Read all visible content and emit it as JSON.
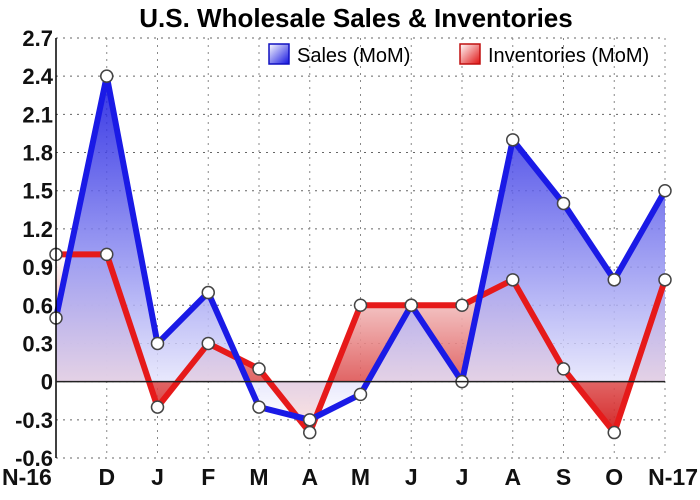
{
  "chart_data": {
    "type": "area",
    "title": "U.S. Wholesale Sales & Inventories",
    "xlabel": "",
    "ylabel": "",
    "categories": [
      "N-16",
      "D",
      "J",
      "F",
      "M",
      "A",
      "M",
      "J",
      "J",
      "A",
      "S",
      "O",
      "N-17"
    ],
    "ylim": [
      -0.6,
      2.7
    ],
    "yticks": [
      "2.7",
      "2.4",
      "2.1",
      "1.8",
      "1.5",
      "1.2",
      "0.9",
      "0.6",
      "0.3",
      "0",
      "-0.3",
      "-0.6"
    ],
    "ytick_values": [
      2.7,
      2.4,
      2.1,
      1.8,
      1.5,
      1.2,
      0.9,
      0.6,
      0.3,
      0,
      -0.3,
      -0.6
    ],
    "grid": true,
    "legend_position": "top-right",
    "series": [
      {
        "name": "Sales (MoM)",
        "color": "#1a1ae6",
        "values": [
          0.5,
          2.4,
          0.3,
          0.7,
          -0.2,
          -0.3,
          -0.1,
          0.6,
          0.0,
          1.9,
          1.4,
          0.8,
          1.5
        ]
      },
      {
        "name": "Inventories (MoM)",
        "color": "#e61a1a",
        "values": [
          1.0,
          1.0,
          -0.2,
          0.3,
          0.1,
          -0.4,
          0.6,
          0.6,
          0.6,
          0.8,
          0.1,
          -0.4,
          0.8
        ]
      }
    ]
  }
}
